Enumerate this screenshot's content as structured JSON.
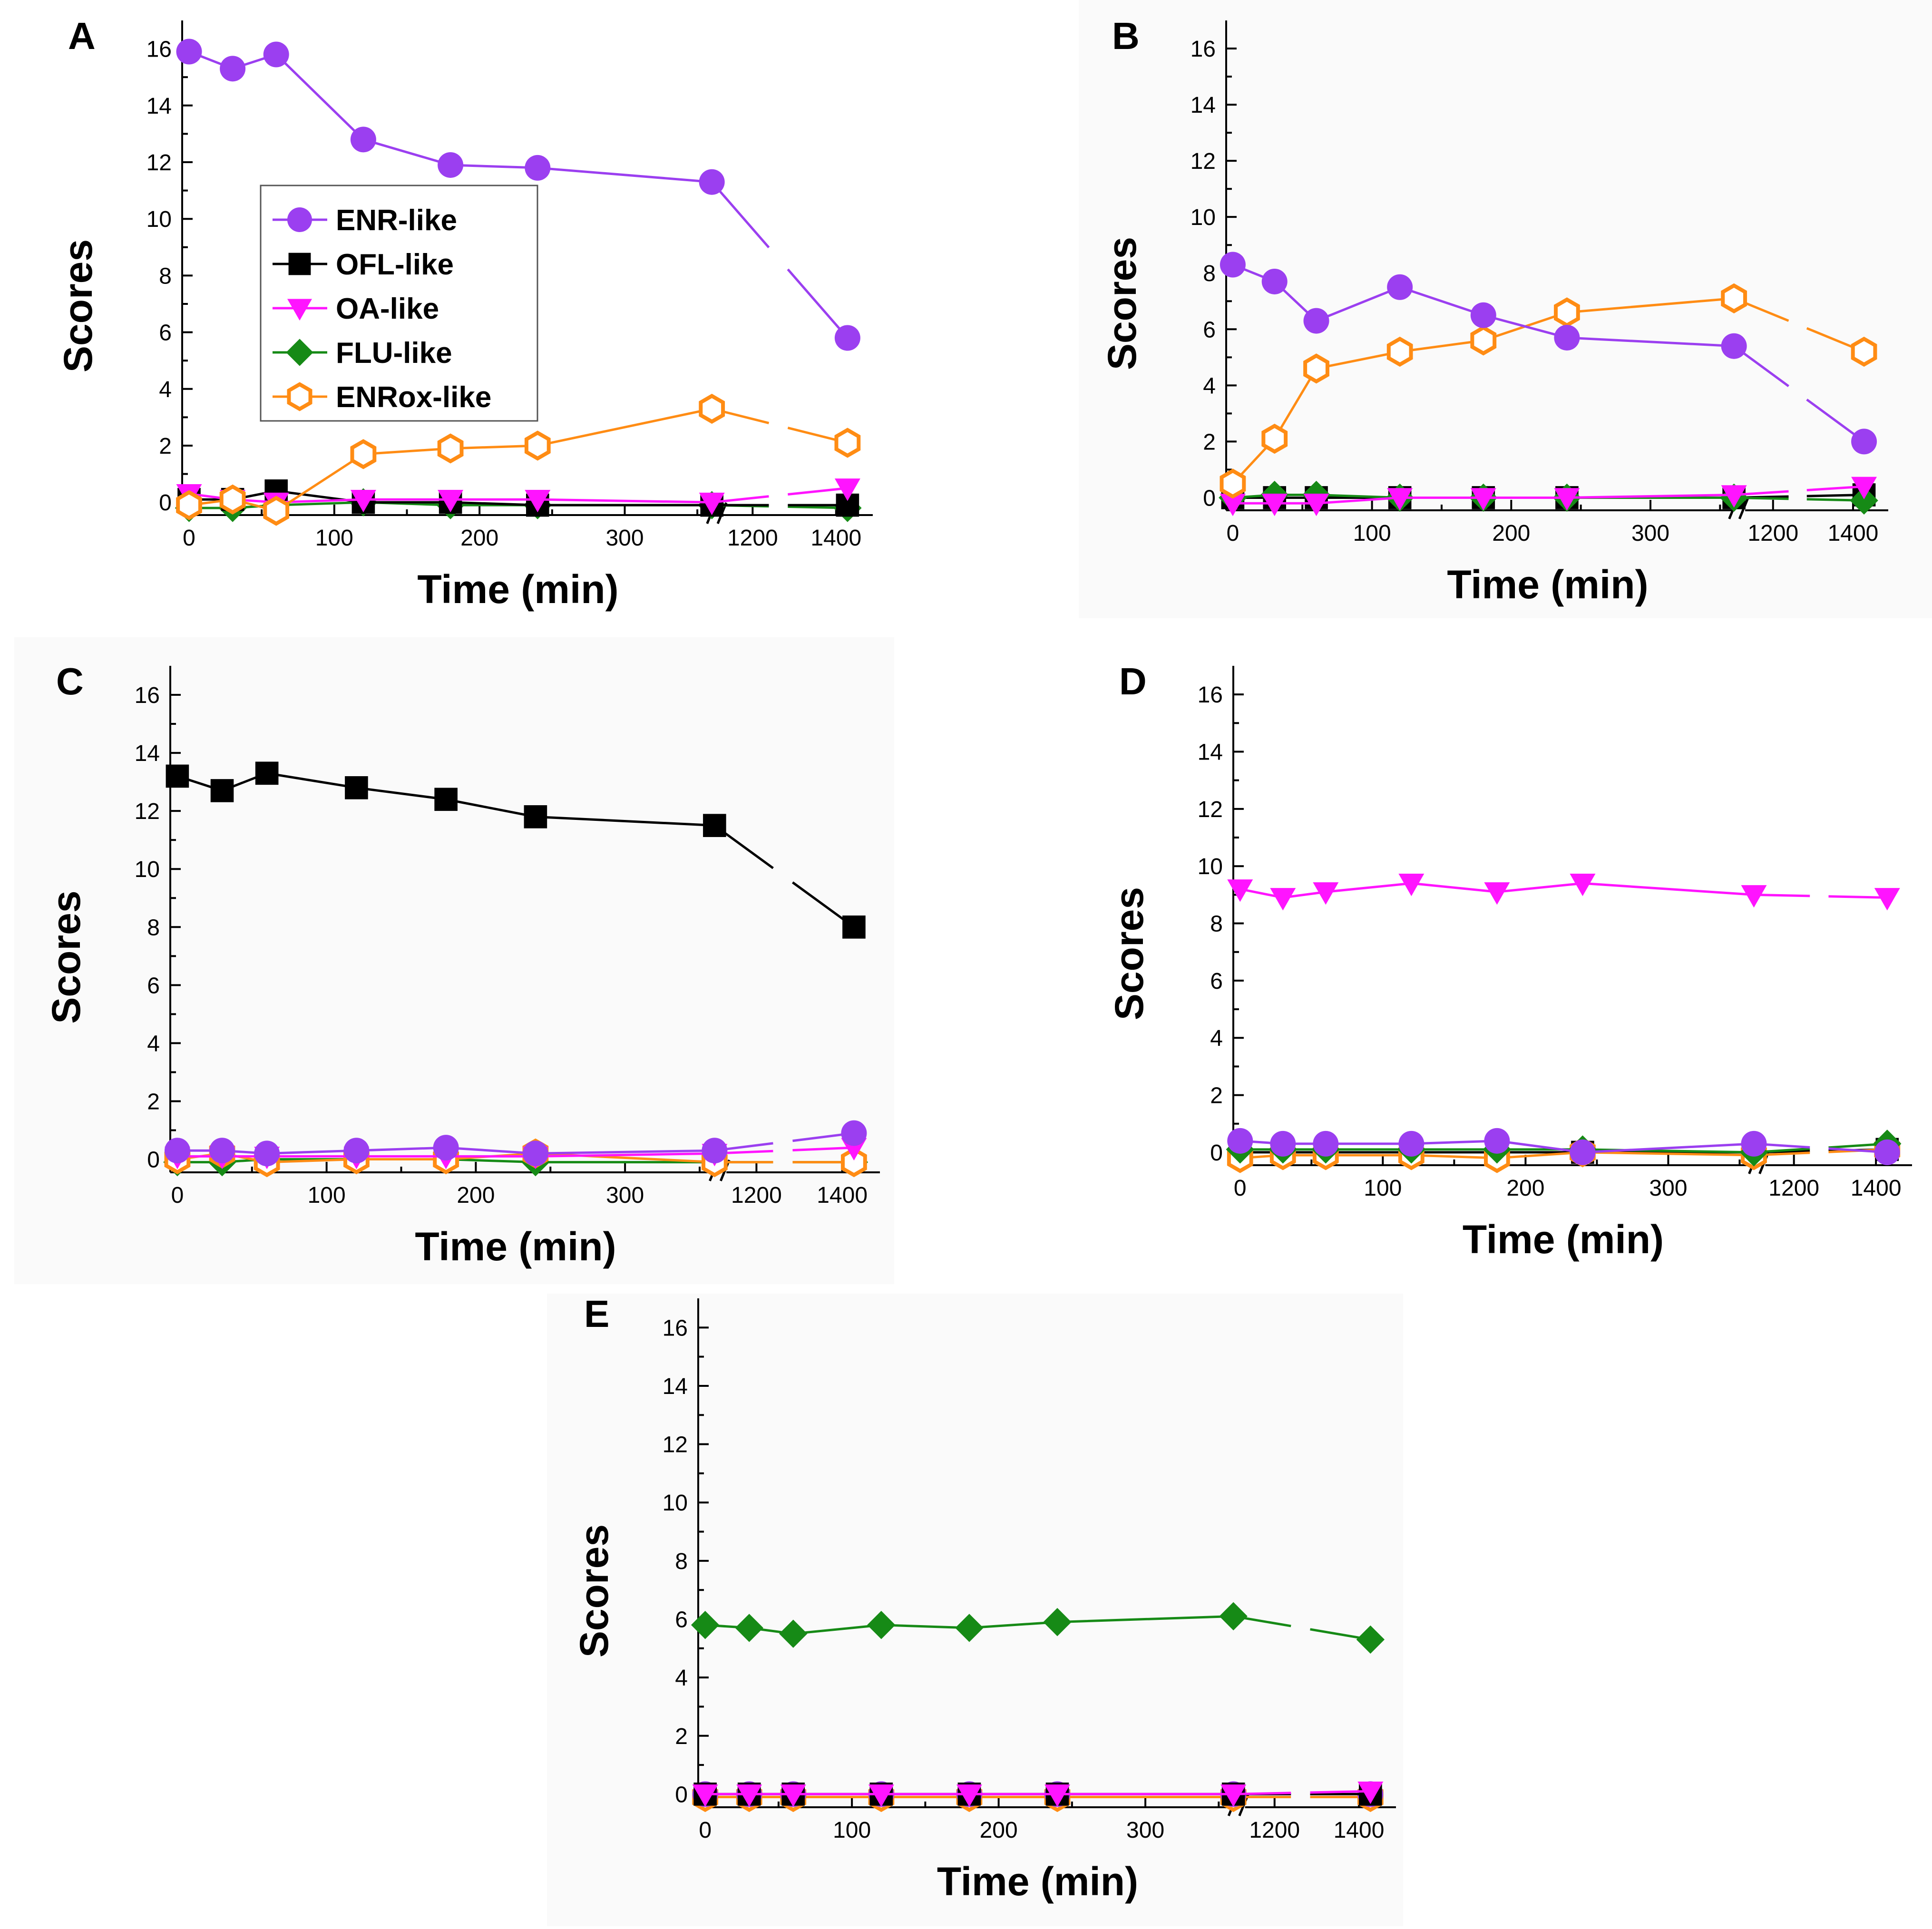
{
  "colors": {
    "ENR-like": "#9b3ff0",
    "OFL-like": "#000000",
    "OA-like": "#ff14ff",
    "FLU-like": "#168a16",
    "ENRox-like": "#ff8c14"
  },
  "chart_data": [
    {
      "panel": "A",
      "type": "line",
      "xlabel": "Time (min)",
      "ylabel": "Scores",
      "ylim": [
        0,
        17
      ],
      "yticks": [
        "0",
        "2",
        "4",
        "6",
        "8",
        "10",
        "12",
        "14",
        "16"
      ],
      "xticks": [
        "0",
        "100",
        "200",
        "300",
        "1200",
        "1400"
      ],
      "x": [
        0,
        30,
        60,
        120,
        180,
        240,
        360,
        1420
      ],
      "axis_break": "between 360 and 1200",
      "legend": [
        "ENR-like",
        "OFL-like",
        "OA-like",
        "FLU-like",
        "ENRox-like"
      ],
      "series": [
        {
          "name": "ENR-like",
          "values": [
            15.9,
            15.3,
            15.8,
            12.8,
            11.9,
            11.8,
            11.3,
            5.8
          ]
        },
        {
          "name": "OFL-like",
          "values": [
            0.1,
            0.1,
            0.4,
            0.0,
            0.0,
            -0.1,
            -0.1,
            -0.1
          ]
        },
        {
          "name": "OA-like",
          "values": [
            0.3,
            0.1,
            0.0,
            0.1,
            0.1,
            0.1,
            0.0,
            0.5
          ]
        },
        {
          "name": "FLU-like",
          "values": [
            -0.2,
            -0.2,
            -0.1,
            0.0,
            -0.1,
            -0.1,
            -0.1,
            -0.2
          ]
        },
        {
          "name": "ENRox-like",
          "values": [
            -0.1,
            0.1,
            -0.3,
            1.7,
            1.9,
            2.0,
            3.3,
            2.1
          ]
        }
      ]
    },
    {
      "panel": "B",
      "type": "line",
      "xlabel": "Time (min)",
      "ylabel": "Scores",
      "ylim": [
        0,
        17
      ],
      "yticks": [
        "0",
        "2",
        "4",
        "6",
        "8",
        "10",
        "12",
        "14",
        "16"
      ],
      "xticks": [
        "0",
        "100",
        "200",
        "300",
        "1200",
        "1400"
      ],
      "x": [
        0,
        30,
        60,
        120,
        180,
        240,
        360,
        1420
      ],
      "axis_break": "between 360 and 1200",
      "series": [
        {
          "name": "ENR-like",
          "values": [
            8.3,
            7.7,
            6.3,
            7.5,
            6.5,
            5.7,
            5.4,
            2.0
          ]
        },
        {
          "name": "OFL-like",
          "values": [
            0.0,
            0.0,
            0.0,
            0.0,
            0.0,
            0.0,
            0.0,
            0.1
          ]
        },
        {
          "name": "OA-like",
          "values": [
            -0.2,
            -0.2,
            -0.2,
            0.0,
            0.0,
            0.0,
            0.1,
            0.4
          ]
        },
        {
          "name": "FLU-like",
          "values": [
            0.0,
            0.1,
            0.1,
            0.0,
            0.0,
            0.0,
            0.0,
            -0.1
          ]
        },
        {
          "name": "ENRox-like",
          "values": [
            0.5,
            2.1,
            4.6,
            5.2,
            5.6,
            6.6,
            7.1,
            5.2
          ]
        }
      ]
    },
    {
      "panel": "C",
      "type": "line",
      "xlabel": "Time (min)",
      "ylabel": "Scores",
      "ylim": [
        0,
        17
      ],
      "yticks": [
        "0",
        "2",
        "4",
        "6",
        "8",
        "10",
        "12",
        "14",
        "16"
      ],
      "xticks": [
        "0",
        "100",
        "200",
        "300",
        "1200",
        "1400"
      ],
      "x": [
        0,
        30,
        60,
        120,
        180,
        240,
        360,
        1420
      ],
      "axis_break": "between 360 and 1200",
      "series": [
        {
          "name": "ENR-like",
          "values": [
            0.3,
            0.3,
            0.2,
            0.3,
            0.4,
            0.2,
            0.3,
            0.9
          ]
        },
        {
          "name": "OFL-like",
          "values": [
            13.2,
            12.7,
            13.3,
            12.8,
            12.4,
            11.8,
            11.5,
            8.0
          ]
        },
        {
          "name": "OA-like",
          "values": [
            0.1,
            0.1,
            0.1,
            0.1,
            0.1,
            0.1,
            0.2,
            0.4
          ]
        },
        {
          "name": "FLU-like",
          "values": [
            -0.1,
            -0.1,
            0.0,
            0.0,
            0.0,
            -0.1,
            -0.1,
            -0.1
          ]
        },
        {
          "name": "ENRox-like",
          "values": [
            0.0,
            0.2,
            -0.1,
            0.0,
            0.0,
            0.2,
            -0.1,
            -0.1
          ]
        }
      ]
    },
    {
      "panel": "D",
      "type": "line",
      "xlabel": "Time (min)",
      "ylabel": "Scores",
      "ylim": [
        0,
        17
      ],
      "yticks": [
        "0",
        "2",
        "4",
        "6",
        "8",
        "10",
        "12",
        "14",
        "16"
      ],
      "xticks": [
        "0",
        "100",
        "200",
        "300",
        "1200",
        "1400"
      ],
      "x": [
        0,
        30,
        60,
        120,
        180,
        240,
        360,
        1420
      ],
      "axis_break": "between 360 and 1200",
      "series": [
        {
          "name": "ENR-like",
          "values": [
            0.4,
            0.3,
            0.3,
            0.3,
            0.4,
            0.0,
            0.3,
            0.0
          ]
        },
        {
          "name": "OFL-like",
          "values": [
            0.0,
            0.0,
            0.0,
            0.0,
            0.0,
            0.0,
            0.0,
            0.1
          ]
        },
        {
          "name": "OA-like",
          "values": [
            9.2,
            8.9,
            9.1,
            9.4,
            9.1,
            9.4,
            9.0,
            8.9
          ]
        },
        {
          "name": "FLU-like",
          "values": [
            0.1,
            0.1,
            0.1,
            0.1,
            0.1,
            0.1,
            0.0,
            0.3
          ]
        },
        {
          "name": "ENRox-like",
          "values": [
            -0.2,
            -0.1,
            -0.1,
            -0.1,
            -0.2,
            0.0,
            -0.1,
            0.1
          ]
        }
      ]
    },
    {
      "panel": "E",
      "type": "line",
      "xlabel": "Time (min)",
      "ylabel": "Scores",
      "ylim": [
        0,
        17
      ],
      "yticks": [
        "0",
        "2",
        "4",
        "6",
        "8",
        "10",
        "12",
        "14",
        "16"
      ],
      "xticks": [
        "0",
        "100",
        "200",
        "300",
        "1200",
        "1400"
      ],
      "x": [
        0,
        30,
        60,
        120,
        180,
        240,
        360,
        1420
      ],
      "axis_break": "between 360 and 1200",
      "series": [
        {
          "name": "ENR-like",
          "values": [
            0.0,
            0.0,
            0.0,
            0.0,
            0.0,
            0.0,
            0.0,
            0.0
          ]
        },
        {
          "name": "OFL-like",
          "values": [
            0.0,
            0.0,
            0.0,
            0.0,
            0.0,
            0.0,
            0.0,
            0.0
          ]
        },
        {
          "name": "OA-like",
          "values": [
            0.0,
            0.0,
            0.0,
            0.0,
            0.0,
            0.0,
            0.0,
            0.1
          ]
        },
        {
          "name": "FLU-like",
          "values": [
            5.8,
            5.7,
            5.5,
            5.8,
            5.7,
            5.9,
            6.1,
            5.3
          ]
        },
        {
          "name": "ENRox-like",
          "values": [
            -0.1,
            -0.1,
            -0.1,
            -0.1,
            -0.1,
            -0.1,
            -0.1,
            -0.1
          ]
        }
      ]
    }
  ]
}
